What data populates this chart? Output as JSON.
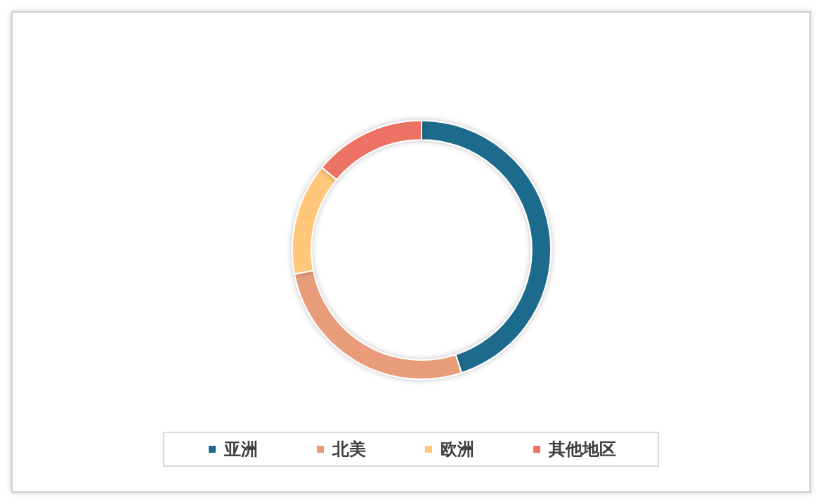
{
  "chart_data": {
    "type": "donut",
    "categories": [
      "亚洲",
      "北美",
      "欧洲",
      "其他地区"
    ],
    "values": [
      45,
      27,
      14,
      14
    ],
    "colors": [
      "#1d6a8c",
      "#e89c7a",
      "#fec77a",
      "#ec7363"
    ],
    "legend": "bottom"
  }
}
